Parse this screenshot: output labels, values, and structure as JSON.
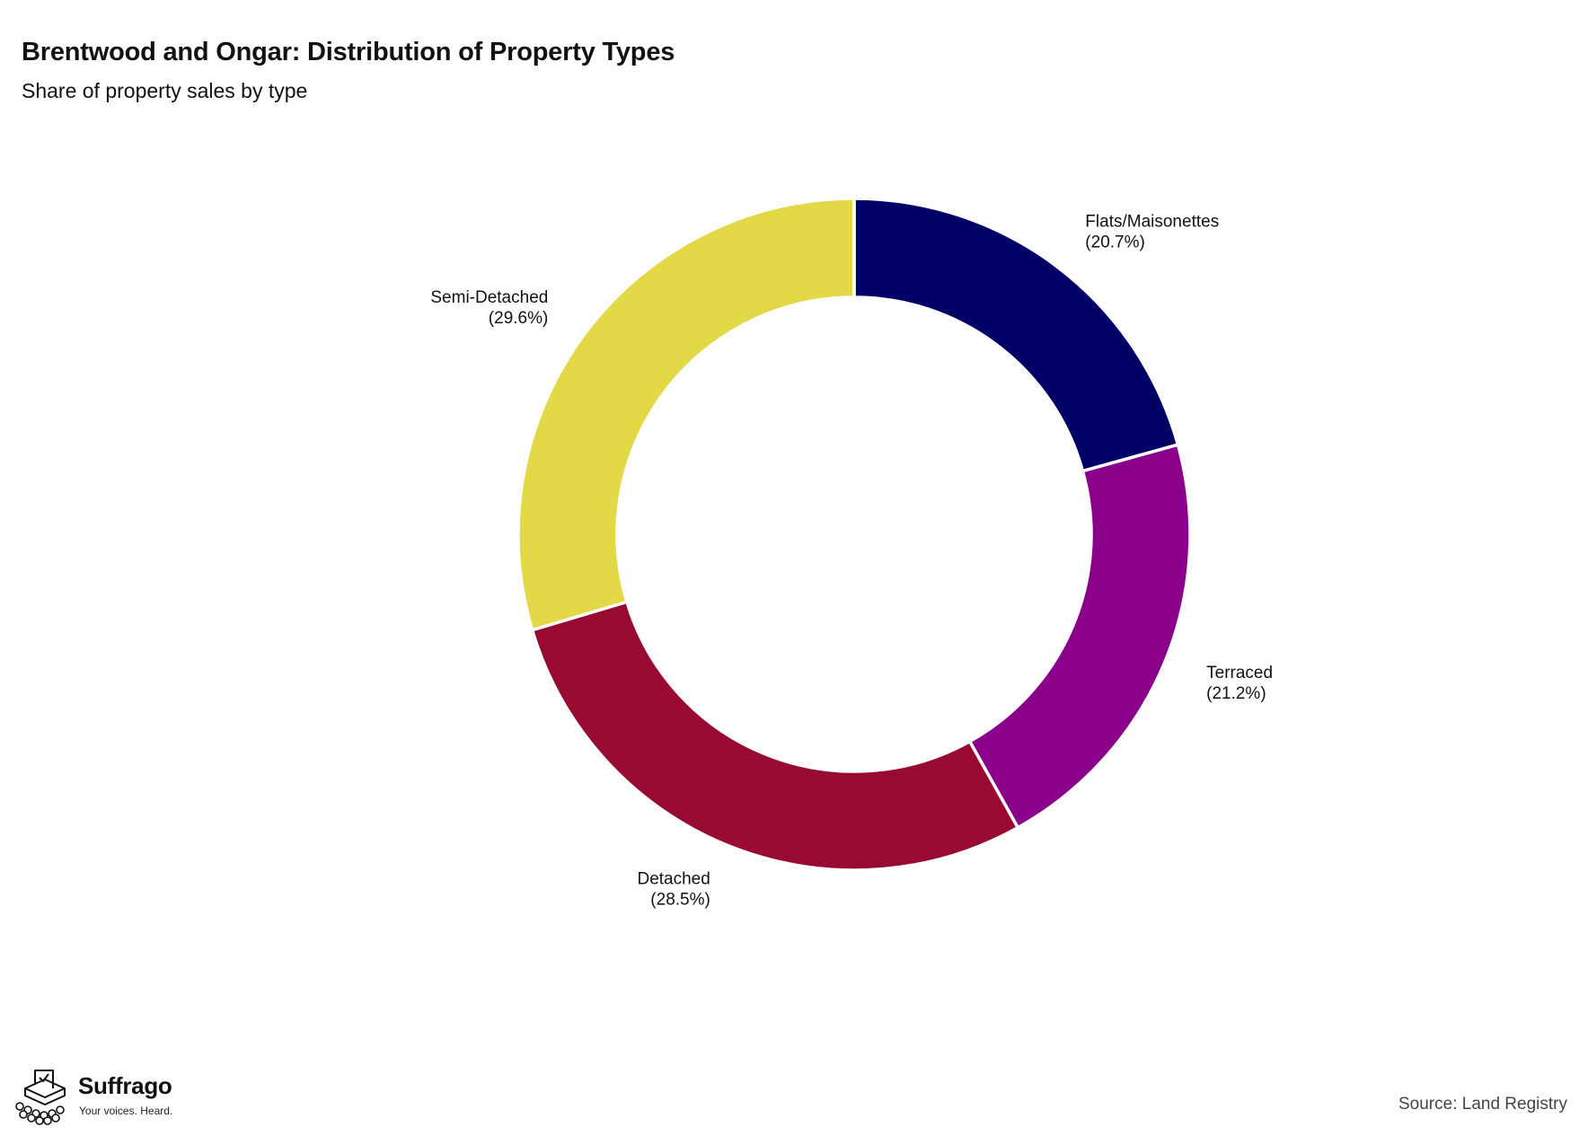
{
  "chart_data": {
    "type": "pie",
    "variant": "donut",
    "title": "Brentwood and Ongar: Distribution of Property Types",
    "subtitle": "Share of property sales by type",
    "unit": "%",
    "slices": [
      {
        "label": "Flats/Maisonettes",
        "value": 20.7,
        "value_label": "(20.7%)",
        "color": "#000066"
      },
      {
        "label": "Terraced",
        "value": 21.2,
        "value_label": "(21.2%)",
        "color": "#8b008b"
      },
      {
        "label": "Detached",
        "value": 28.5,
        "value_label": "(28.5%)",
        "color": "#990a32"
      },
      {
        "label": "Semi-Detached",
        "value": 29.6,
        "value_label": "(29.6%)",
        "color": "#e3d845"
      }
    ],
    "slice_order": "clockwise from top",
    "legend": "none (direct labels)"
  },
  "branding": {
    "name": "Suffrago",
    "tagline": "Your voices. Heard."
  },
  "source": "Source: Land Registry"
}
